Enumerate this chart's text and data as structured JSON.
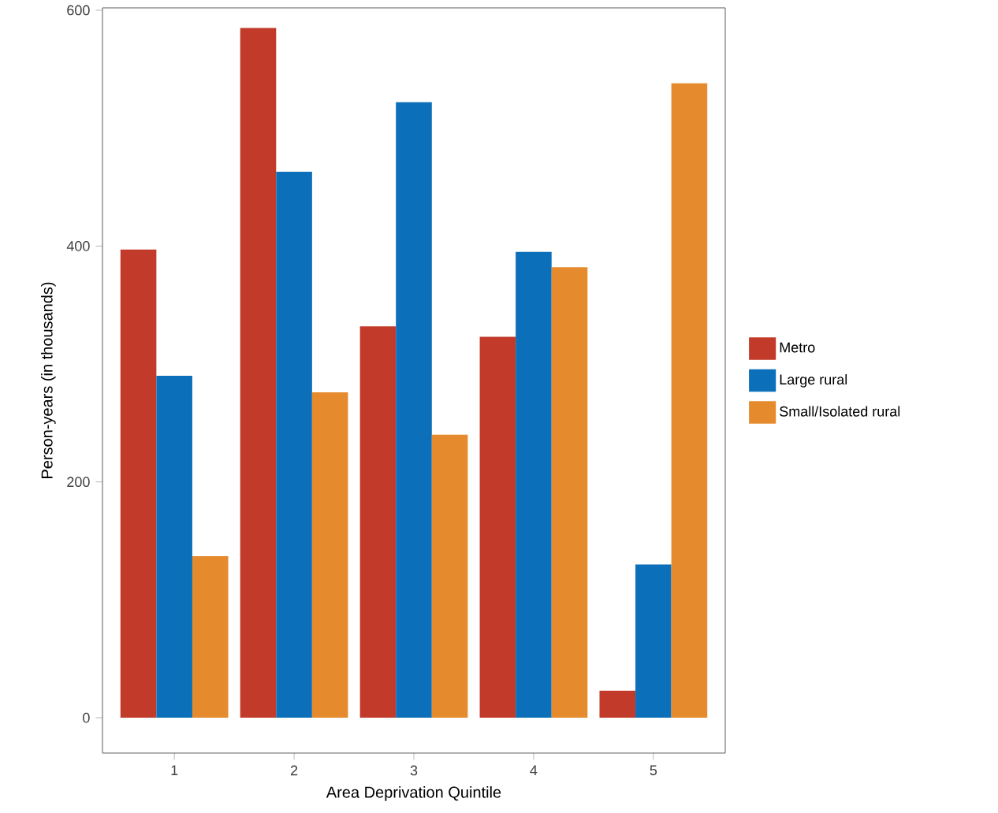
{
  "chart_data": {
    "type": "bar",
    "xlabel": "Area Deprivation Quintile",
    "ylabel": "Person-years (in thousands)",
    "categories": [
      "1",
      "2",
      "3",
      "4",
      "5"
    ],
    "series": [
      {
        "name": "Metro",
        "color": "#c23b2a",
        "values": [
          397,
          585,
          332,
          323,
          23
        ]
      },
      {
        "name": "Large rural",
        "color": "#0b6fba",
        "values": [
          290,
          463,
          522,
          395,
          130
        ]
      },
      {
        "name": "Small/Isolated rural",
        "color": "#e68a2e",
        "values": [
          137,
          276,
          240,
          382,
          538
        ]
      }
    ],
    "ylim": [
      -30,
      602
    ],
    "yticks": [
      0,
      200,
      400,
      600
    ],
    "grid": false,
    "legend": "right"
  }
}
